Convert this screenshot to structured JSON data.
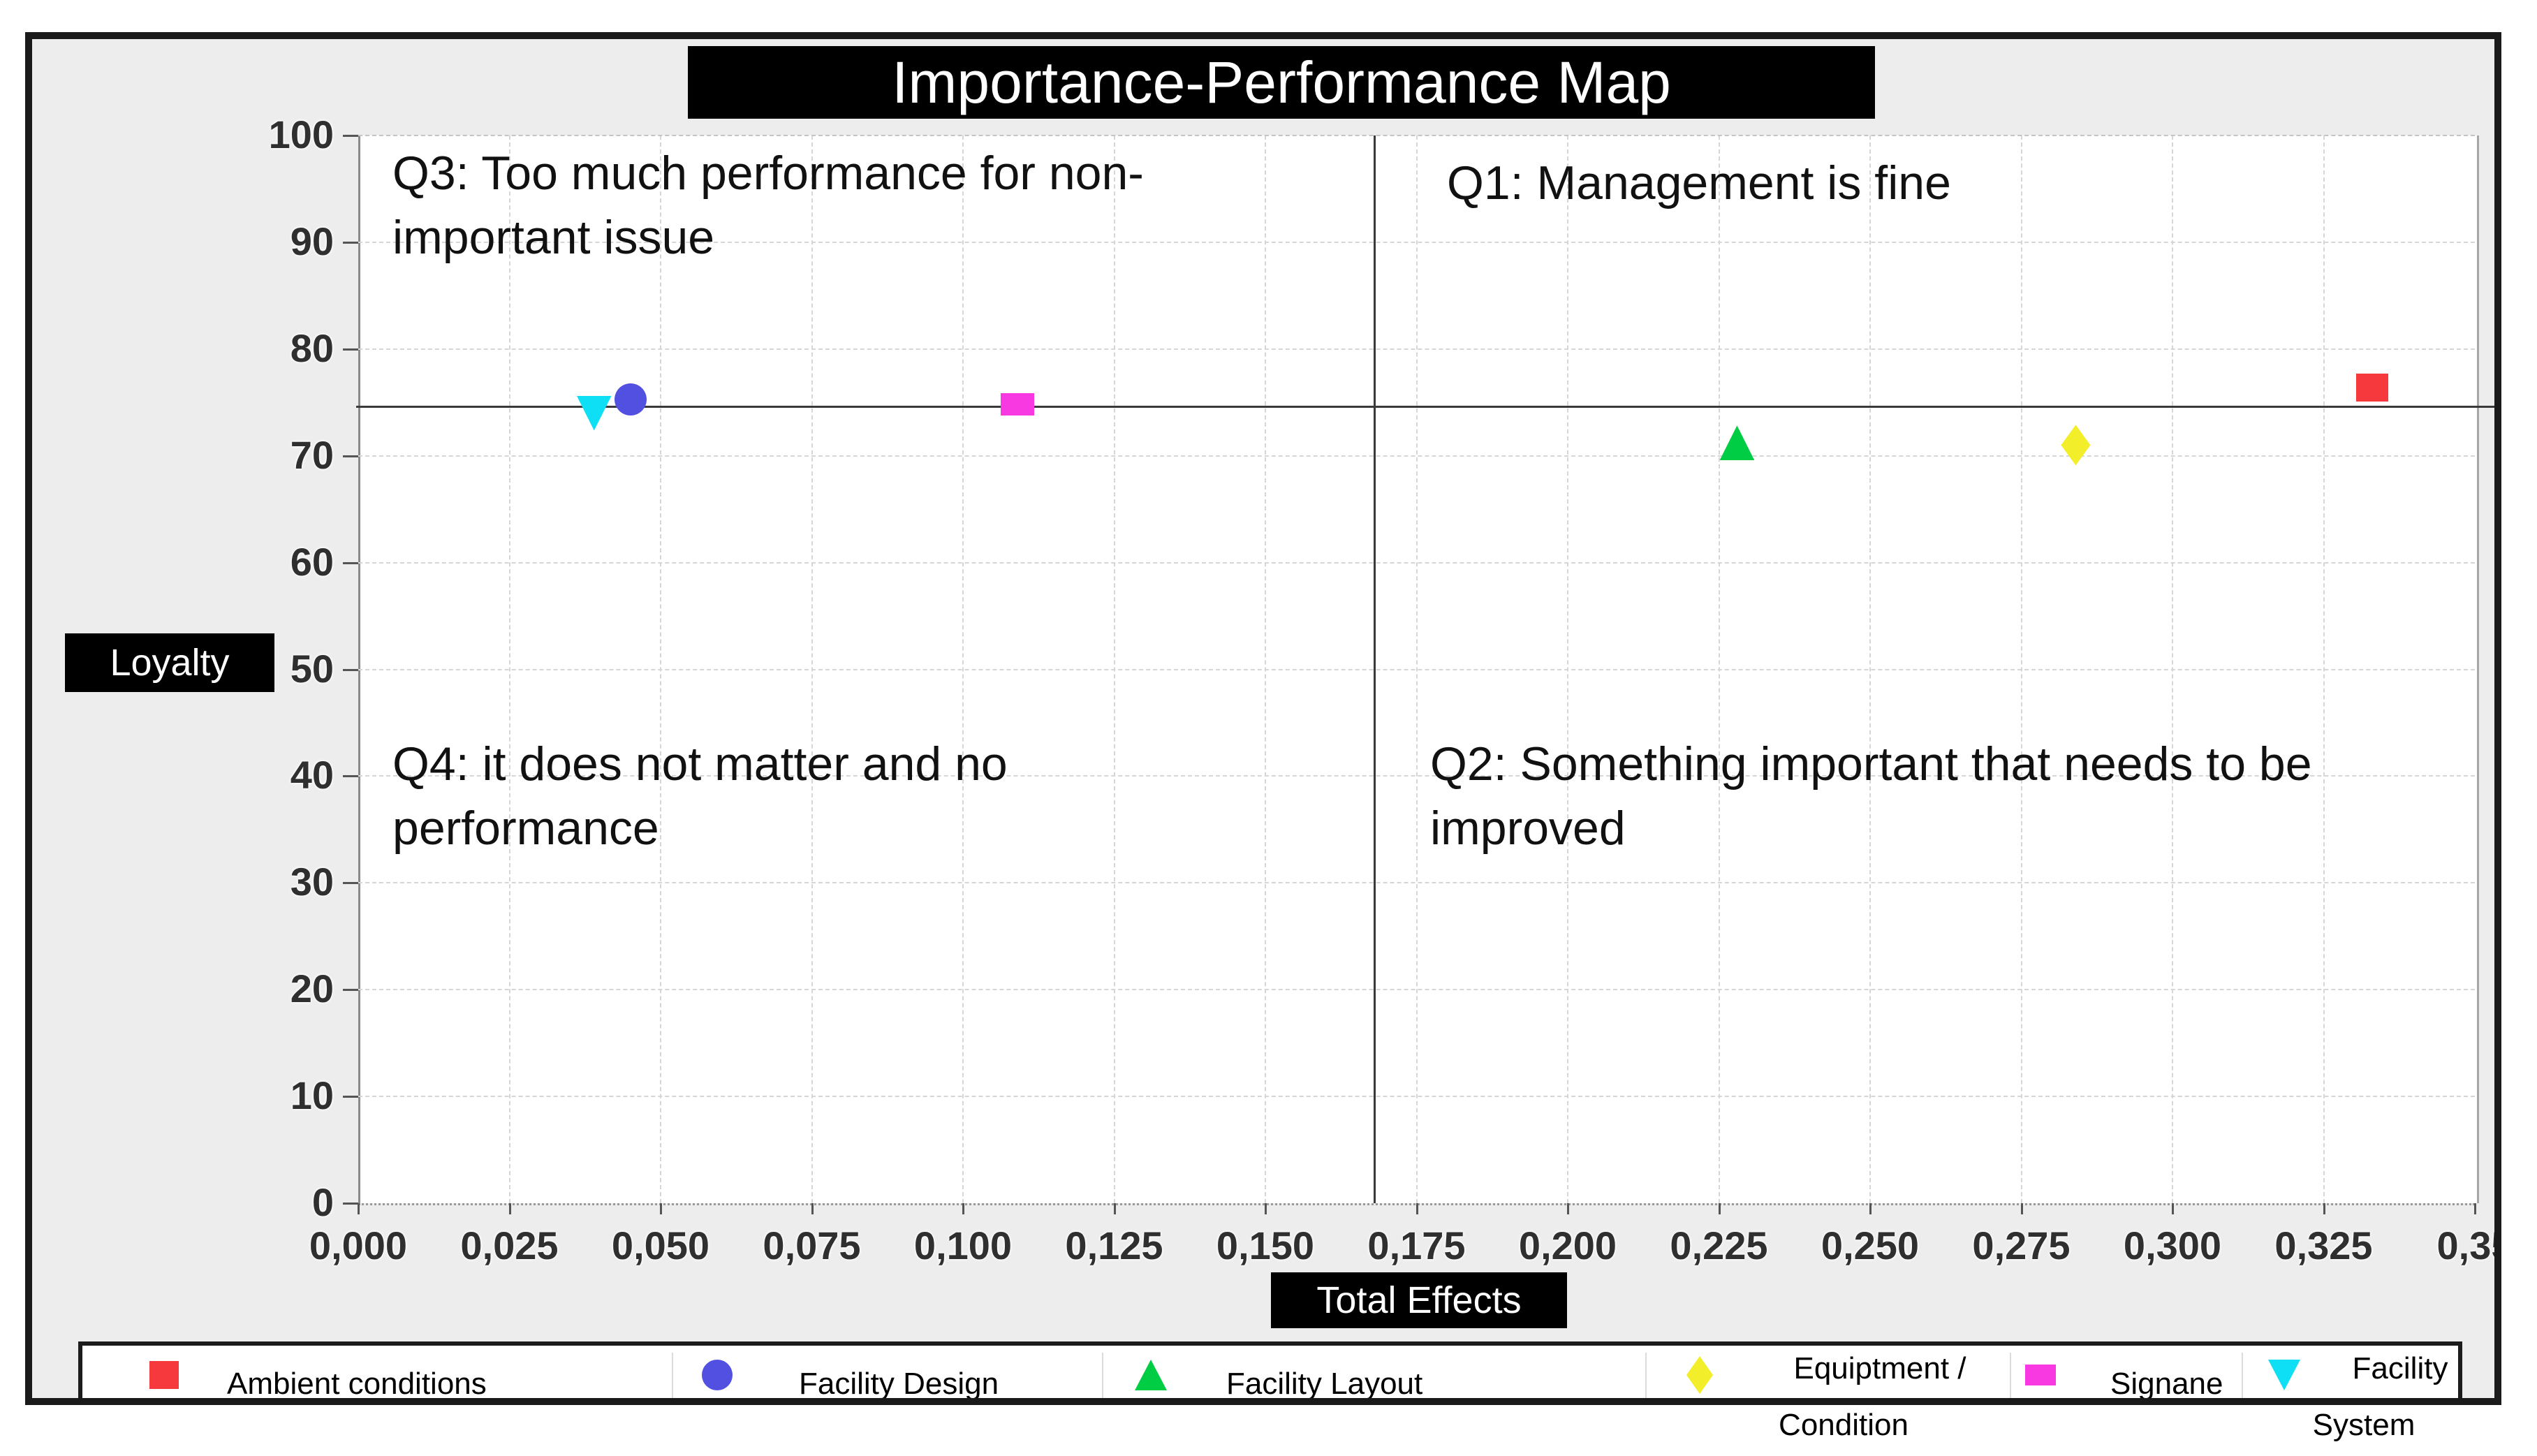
{
  "figure": {
    "title": "Importance-Performance Map",
    "x_axis_label": "Total Effects",
    "y_axis_label": "Loyalty"
  },
  "quadrant_labels": {
    "q3_lines": [
      "Q3: Too much performance for non-",
      "important issue"
    ],
    "q1_lines": [
      "Q1: Management is fine"
    ],
    "q4_lines": [
      "Q4: it does not matter and no",
      "performance"
    ],
    "q2_lines": [
      "Q2: Something important that needs to be",
      "improved"
    ]
  },
  "chart_data": {
    "type": "scatter",
    "title": "Importance-Performance Map",
    "xlabel": "Total Effects",
    "ylabel": "Loyalty",
    "xlim": [
      0,
      0.35
    ],
    "ylim": [
      0,
      100
    ],
    "grid": true,
    "legend_position": "bottom",
    "x_ticks": [
      {
        "v": 0.0,
        "label": "0,000"
      },
      {
        "v": 0.025,
        "label": "0,025"
      },
      {
        "v": 0.05,
        "label": "0,050"
      },
      {
        "v": 0.075,
        "label": "0,075"
      },
      {
        "v": 0.1,
        "label": "0,100"
      },
      {
        "v": 0.125,
        "label": "0,125"
      },
      {
        "v": 0.15,
        "label": "0,150"
      },
      {
        "v": 0.175,
        "label": "0,175"
      },
      {
        "v": 0.2,
        "label": "0,200"
      },
      {
        "v": 0.225,
        "label": "0,225"
      },
      {
        "v": 0.25,
        "label": "0,250"
      },
      {
        "v": 0.275,
        "label": "0,275"
      },
      {
        "v": 0.3,
        "label": "0,300"
      },
      {
        "v": 0.325,
        "label": "0,325"
      },
      {
        "v": 0.35,
        "label": "0,35"
      }
    ],
    "y_ticks": [
      {
        "v": 0,
        "label": "0"
      },
      {
        "v": 10,
        "label": "10"
      },
      {
        "v": 20,
        "label": "20"
      },
      {
        "v": 30,
        "label": "30"
      },
      {
        "v": 40,
        "label": "40"
      },
      {
        "v": 50,
        "label": "50"
      },
      {
        "v": 60,
        "label": "60"
      },
      {
        "v": 70,
        "label": "70"
      },
      {
        "v": 80,
        "label": "80"
      },
      {
        "v": 90,
        "label": "90"
      },
      {
        "v": 100,
        "label": "100"
      }
    ],
    "reference_lines": {
      "horizontal_y": 74.6,
      "vertical_x": 0.168
    },
    "series": [
      {
        "name": "Ambient conditions",
        "marker": "square",
        "color": "#f5393d",
        "x": 0.333,
        "y": 76.4,
        "legend_lines": [
          "Ambient conditions"
        ]
      },
      {
        "name": "Facility Design",
        "marker": "circle",
        "color": "#5150e0",
        "x": 0.045,
        "y": 75.3,
        "legend_lines": [
          "Facility Design"
        ]
      },
      {
        "name": "Facility Layout",
        "marker": "triangle-up",
        "color": "#00cc44",
        "x": 0.228,
        "y": 71.2,
        "legend_lines": [
          "Facility Layout"
        ]
      },
      {
        "name": "Equiptment / Condition",
        "marker": "diamond",
        "color": "#f2ee29",
        "x": 0.284,
        "y": 71.0,
        "legend_lines": [
          "Equiptment /",
          "Condition"
        ]
      },
      {
        "name": "Signane",
        "marker": "flat-square",
        "color": "#f838e1",
        "x": 0.109,
        "y": 74.8,
        "legend_lines": [
          "Signane"
        ]
      },
      {
        "name": "Facility System",
        "marker": "triangle-down",
        "color": "#0edff5",
        "x": 0.039,
        "y": 74.0,
        "legend_lines": [
          "Facility",
          "System"
        ]
      }
    ]
  }
}
